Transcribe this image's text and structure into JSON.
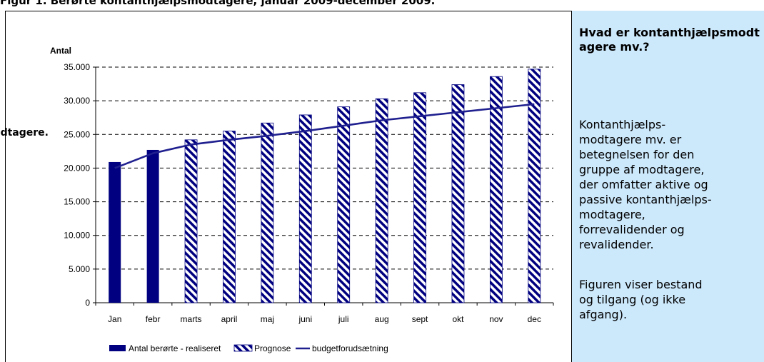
{
  "figure_title": "Figur 1. Berørte kontanthjælpsmodtagere, januar 2009-december 2009.",
  "side_label": "modtagere.",
  "info_panel": {
    "heading": "Hvad er kontanthjælpsmodtagere mv.?",
    "paragraph1": "Kontanthjælps-\nmodtagere mv. er\nbetegnelsen for den\ngruppe af modtagere,\nder omfatter aktive og\npassive kontanthjælps-\nmodtagere,\nforrevalidender og\nrevalidender.",
    "paragraph2": "Figuren viser bestand\nog tilgang (og ikke\nafgang)."
  },
  "colors": {
    "realized_bar": "#000080",
    "forecast_stripe": "#000080",
    "budget_line": "#1f1f8f",
    "panel_background": "#cce8fb"
  },
  "chart_data": {
    "type": "bar",
    "title": "",
    "ylabel": "Antal",
    "xlabel": "",
    "ylim": [
      0,
      35000
    ],
    "y_ticks": [
      0,
      5000,
      10000,
      15000,
      20000,
      25000,
      30000,
      35000
    ],
    "y_tick_labels": [
      "0",
      "5.000",
      "10.000",
      "15.000",
      "20.000",
      "25.000",
      "30.000",
      "35.000"
    ],
    "grid": "dashed horizontal",
    "legend_placement": "bottom",
    "categories": [
      "Jan",
      "febr",
      "marts",
      "april",
      "maj",
      "juni",
      "juli",
      "aug",
      "sept",
      "okt",
      "nov",
      "dec"
    ],
    "series": [
      {
        "name": "Antal berørte - realiseret",
        "type": "bar",
        "values": [
          20900,
          22700,
          null,
          null,
          null,
          null,
          null,
          null,
          null,
          null,
          null,
          null
        ]
      },
      {
        "name": "Prognose",
        "type": "bar",
        "pattern": "diagonal stripes",
        "values": [
          null,
          null,
          24200,
          25500,
          26700,
          27900,
          29100,
          30300,
          31200,
          32400,
          33600,
          34700
        ]
      },
      {
        "name": "budgetforudsætning",
        "type": "line",
        "values": [
          20000,
          22200,
          23500,
          24200,
          24800,
          25500,
          26300,
          27100,
          27700,
          28300,
          28900,
          29500
        ]
      }
    ]
  }
}
